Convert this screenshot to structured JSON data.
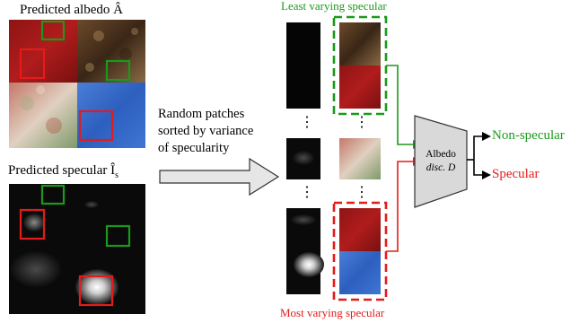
{
  "labels": {
    "predicted_albedo": "Predicted albedo Â",
    "predicted_specular_main": "Predicted specular Î",
    "predicted_specular_sub": "s",
    "random_patches_line1": "Random patches",
    "random_patches_line2": "sorted by variance",
    "random_patches_line3": "of specularity",
    "least_varying": "Least varying specular",
    "most_varying": "Most varying specular",
    "disc_line1": "Albedo",
    "disc_line2": "disc. D",
    "non_specular": "Non-specular",
    "specular": "Specular",
    "ellipsis": "⋮"
  },
  "colors": {
    "green": "#1a9a1a",
    "red": "#e41b1b",
    "disc_fill": "#d9d9d9",
    "disc_stroke": "#333333",
    "arrow_fill": "#e6e6e6"
  }
}
